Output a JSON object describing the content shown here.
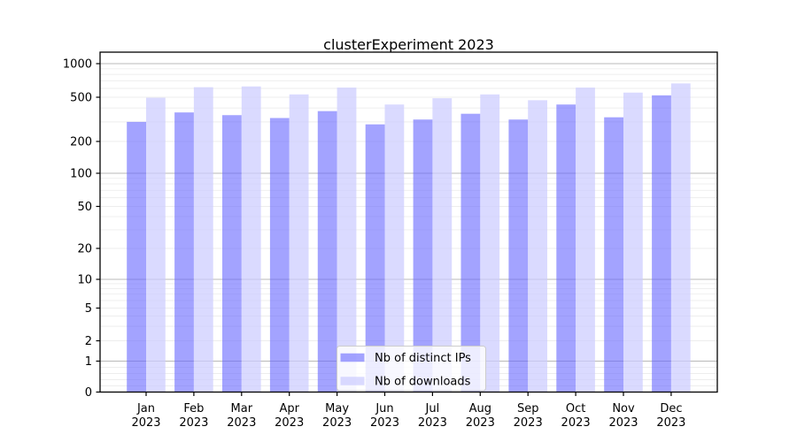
{
  "title": "clusterExperiment 2023",
  "chart_data": {
    "type": "bar",
    "title": "clusterExperiment 2023",
    "xlabel": "",
    "ylabel": "",
    "yscale": "symlog",
    "ylim": [
      0,
      1300
    ],
    "grid": true,
    "y_ticks": [
      0,
      1,
      2,
      5,
      10,
      20,
      50,
      100,
      200,
      500,
      1000
    ],
    "categories": [
      "Jan\n2023",
      "Feb\n2023",
      "Mar\n2023",
      "Apr\n2023",
      "May\n2023",
      "Jun\n2023",
      "Jul\n2023",
      "Aug\n2023",
      "Sep\n2023",
      "Oct\n2023",
      "Nov\n2023",
      "Dec\n2023"
    ],
    "series": [
      {
        "name": "Nb of distinct IPs",
        "color": "#6666ff",
        "alpha": 0.6,
        "values": [
          300,
          365,
          345,
          325,
          375,
          285,
          315,
          355,
          315,
          430,
          330,
          520
        ]
      },
      {
        "name": "Nb of downloads",
        "color": "#ccccff",
        "alpha": 0.72,
        "values": [
          495,
          615,
          625,
          530,
          610,
          430,
          490,
          530,
          470,
          610,
          550,
          665
        ]
      }
    ],
    "legend_position": "lower center",
    "colors": {
      "major_grid": "#b8b8b8",
      "minor_grid": "#ededed",
      "axis": "#000000",
      "legend_border": "#cccccc",
      "legend_bg": "#ffffff"
    }
  }
}
